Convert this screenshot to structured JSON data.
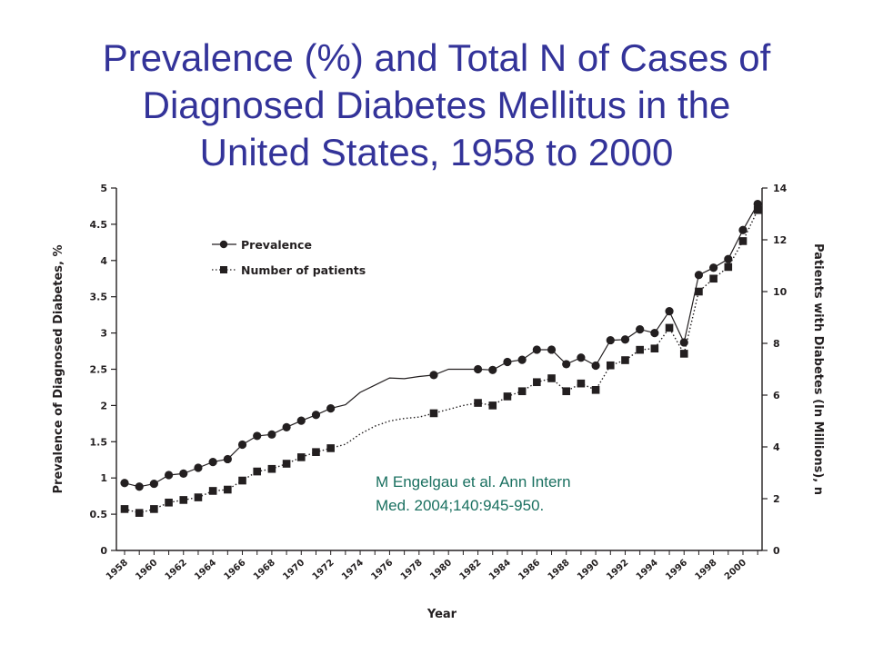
{
  "slide": {
    "title": "Prevalence (%) and Total N of Cases of\nDiagnosed Diabetes Mellitus in the\nUnited States, 1958 to 2000",
    "citation": "M Engelgau et al.  Ann Intern\nMed. 2004;140:945-950."
  },
  "chart_data": {
    "type": "line",
    "title": "",
    "xlabel": "Year",
    "ylabel_left": "Prevalence of Diagnosed Diabetes, %",
    "ylabel_right": "Patients with Diabetes (In Millions), n",
    "xlim": [
      1958,
      2000
    ],
    "ylim_left": [
      0,
      5
    ],
    "ylim_right": [
      0,
      14
    ],
    "x_ticks": [
      "1958",
      "1960",
      "1962",
      "1964",
      "1966",
      "1968",
      "1970",
      "1972",
      "1974",
      "1976",
      "1978",
      "1980",
      "1982",
      "1984",
      "1986",
      "1988",
      "1990",
      "1992",
      "1994",
      "1996",
      "1998",
      "2000"
    ],
    "y_ticks_left": [
      "0",
      "0.5",
      "1",
      "1.5",
      "2",
      "2.5",
      "3",
      "3.5",
      "4",
      "4.5",
      "5"
    ],
    "y_ticks_right": [
      "0",
      "2",
      "4",
      "6",
      "8",
      "10",
      "12",
      "14"
    ],
    "legend_position": "top-left",
    "grid": false,
    "series": [
      {
        "name": "Prevalence",
        "axis": "left",
        "line_style": "solid",
        "marker": "circle",
        "x": [
          1958,
          1959,
          1960,
          1961,
          1962,
          1963,
          1964,
          1965,
          1966,
          1967,
          1968,
          1969,
          1970,
          1971,
          1972,
          1973,
          1974,
          1975,
          1976,
          1977,
          1978,
          1979,
          1980,
          1981,
          1982,
          1983,
          1984,
          1985,
          1986,
          1987,
          1988,
          1989,
          1990,
          1991,
          1992,
          1993,
          1994,
          1995,
          1996,
          1997,
          1998,
          1999,
          2000,
          2001
        ],
        "y": [
          0.93,
          0.88,
          0.92,
          1.04,
          1.06,
          1.14,
          1.22,
          1.26,
          1.46,
          1.58,
          1.6,
          1.7,
          1.79,
          1.87,
          1.96,
          2.01,
          2.18,
          2.28,
          2.38,
          2.37,
          2.4,
          2.42,
          2.5,
          2.5,
          2.5,
          2.49,
          2.6,
          2.63,
          2.77,
          2.77,
          2.57,
          2.66,
          2.55,
          2.9,
          2.91,
          3.05,
          3.0,
          3.3,
          2.87,
          3.8,
          3.9,
          4.02,
          4.42,
          4.78
        ],
        "markers_at": [
          1958,
          1959,
          1960,
          1961,
          1962,
          1963,
          1964,
          1965,
          1966,
          1967,
          1968,
          1969,
          1970,
          1971,
          1972,
          1979,
          1982,
          1983,
          1984,
          1985,
          1986,
          1987,
          1988,
          1989,
          1990,
          1991,
          1992,
          1993,
          1994,
          1995,
          1996,
          1997,
          1998,
          1999,
          2000,
          2001
        ]
      },
      {
        "name": "Number of patients",
        "axis": "right",
        "line_style": "dotted",
        "marker": "square",
        "x": [
          1958,
          1959,
          1960,
          1961,
          1962,
          1963,
          1964,
          1965,
          1966,
          1967,
          1968,
          1969,
          1970,
          1971,
          1972,
          1973,
          1974,
          1975,
          1976,
          1977,
          1978,
          1979,
          1980,
          1981,
          1982,
          1983,
          1984,
          1985,
          1986,
          1987,
          1988,
          1989,
          1990,
          1991,
          1992,
          1993,
          1994,
          1995,
          1996,
          1997,
          1998,
          1999,
          2000,
          2001
        ],
        "y": [
          1.6,
          1.45,
          1.6,
          1.85,
          1.95,
          2.05,
          2.3,
          2.35,
          2.7,
          3.05,
          3.15,
          3.35,
          3.6,
          3.8,
          3.95,
          4.1,
          4.5,
          4.8,
          5.0,
          5.1,
          5.15,
          5.3,
          5.45,
          5.6,
          5.7,
          5.6,
          5.95,
          6.15,
          6.5,
          6.65,
          6.15,
          6.45,
          6.2,
          7.15,
          7.35,
          7.75,
          7.8,
          8.6,
          7.6,
          10.0,
          10.5,
          10.95,
          11.95,
          13.15
        ],
        "markers_at": [
          1958,
          1959,
          1960,
          1961,
          1962,
          1963,
          1964,
          1965,
          1966,
          1967,
          1968,
          1969,
          1970,
          1971,
          1972,
          1979,
          1982,
          1983,
          1984,
          1985,
          1986,
          1987,
          1988,
          1989,
          1990,
          1991,
          1992,
          1993,
          1994,
          1995,
          1996,
          1997,
          1998,
          1999,
          2000,
          2001
        ]
      }
    ],
    "colors": {
      "ink": "#231f20",
      "title": "#333399",
      "citation": "#1a7060"
    }
  }
}
